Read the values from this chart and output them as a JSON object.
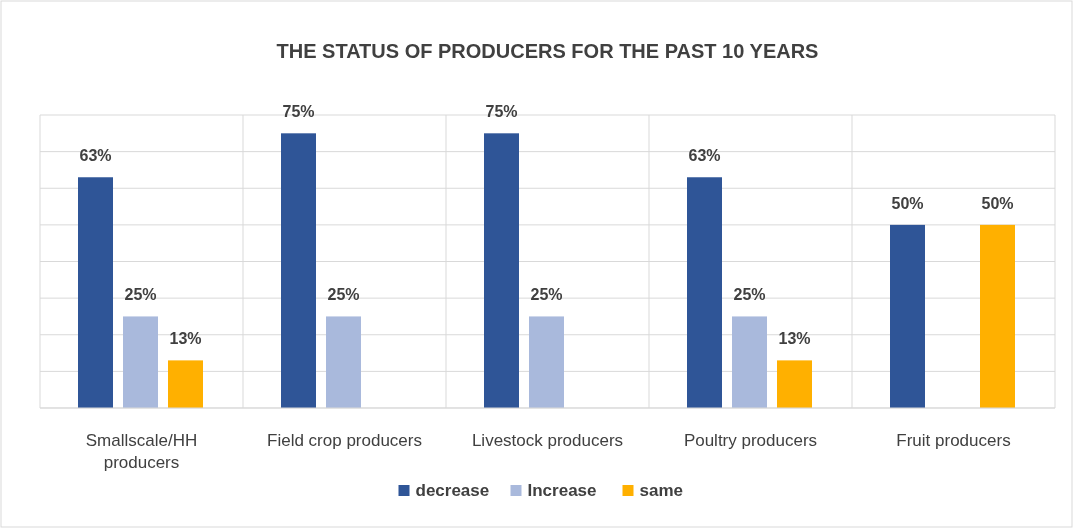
{
  "chart_data": {
    "type": "bar",
    "title": "THE STATUS OF PRODUCERS FOR THE PAST 10 YEARS",
    "categories": [
      "Smallscale/HH producers",
      "Field crop producers",
      "Livestock producers",
      "Poultry producers",
      "Fruit producers"
    ],
    "series": [
      {
        "name": "decrease",
        "color": "#2f5597",
        "values": [
          63,
          75,
          75,
          63,
          50
        ],
        "value_labels": [
          "63%",
          "75%",
          "75%",
          "63%",
          "50%"
        ]
      },
      {
        "name": "Increase",
        "color": "#a9b9dc",
        "values": [
          25,
          25,
          25,
          25,
          null
        ],
        "value_labels": [
          "25%",
          "25%",
          "25%",
          "25%",
          null
        ]
      },
      {
        "name": "same",
        "color": "#ffb000",
        "values": [
          13,
          null,
          null,
          13,
          50
        ],
        "value_labels": [
          "13%",
          null,
          null,
          "13%",
          "50%"
        ]
      }
    ],
    "ylim": [
      0,
      80
    ],
    "yticks": [
      {
        "value": 0,
        "label": null
      },
      {
        "value": 10,
        "label": null
      },
      {
        "value": 20,
        "label": null
      },
      {
        "value": 30,
        "label": null
      },
      {
        "value": 40,
        "label": null
      },
      {
        "value": 50,
        "label": null
      },
      {
        "value": 60,
        "label": null
      },
      {
        "value": 70,
        "label": null
      },
      {
        "value": 80,
        "label": null
      }
    ],
    "tick_labels": "x",
    "grid": true,
    "legend": "bottom"
  }
}
